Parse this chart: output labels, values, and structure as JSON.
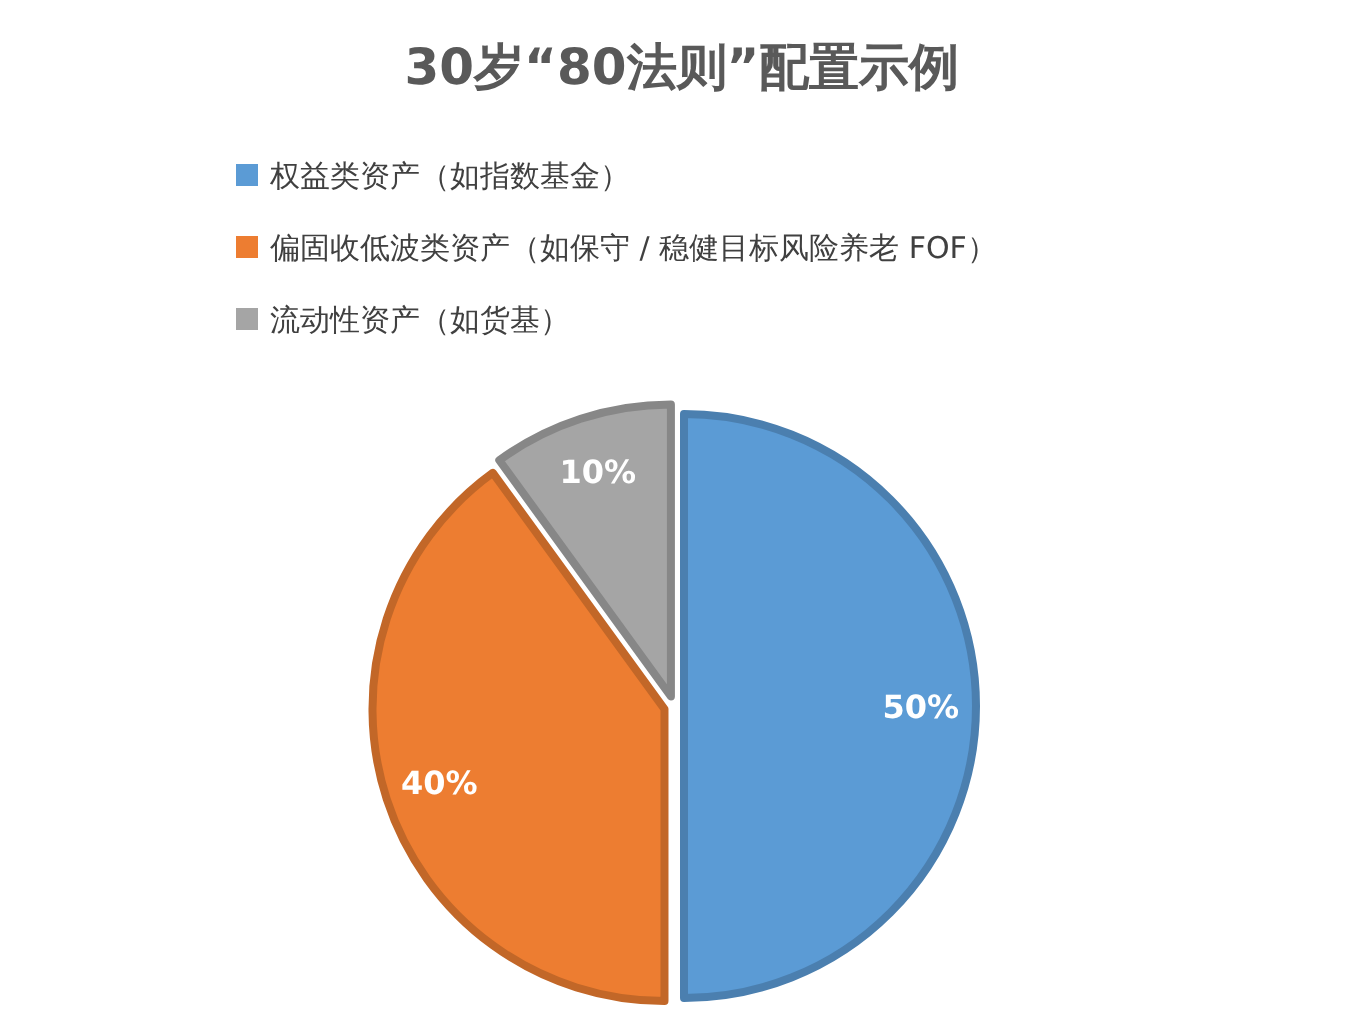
{
  "chart_data": {
    "type": "pie",
    "title": "30岁“80法则”配置示例",
    "categories": [
      "权益类资产（如指数基金）",
      "偏固收低波类资产（如保守 / 稳健目标风险养老 FOF）",
      "流动性资产（如货基）"
    ],
    "values": [
      50,
      40,
      10
    ],
    "colors": [
      "#5b9bd5",
      "#ed7d31",
      "#a5a5a5"
    ],
    "value_labels": [
      "50%",
      "40%",
      "10%"
    ],
    "legend": "top"
  }
}
